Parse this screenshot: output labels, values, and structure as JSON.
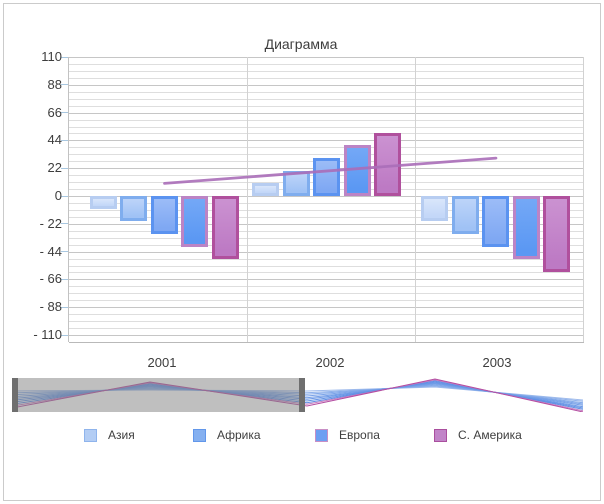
{
  "window": {
    "background": "#ffffff",
    "border_color": "#cbcbcb",
    "text_color": "#3d3d3d"
  },
  "chart_data": {
    "type": "bar",
    "title": "Диаграмма",
    "categories": [
      "2001",
      "2002",
      "2003"
    ],
    "series": [
      {
        "name": "",
        "values": [
          -10,
          10,
          -20
        ],
        "fill": "#c3d7f8",
        "inner": "#d9e6fb",
        "border": "#b7cdf1"
      },
      {
        "name": "Азия",
        "values": [
          -20,
          20,
          -30
        ],
        "fill": "#a0c2f5",
        "inner": "#bdd4f9",
        "border": "#7fadee"
      },
      {
        "name": "Африка",
        "values": [
          -30,
          30,
          -40
        ],
        "fill": "#7fa8f3",
        "inner": "#9cbcf7",
        "border": "#5b93f0"
      },
      {
        "name": "Европа",
        "values": [
          -40,
          40,
          -50
        ],
        "fill": "#5b98f3",
        "inner": "#74a8f6",
        "border": "#bc84c5"
      },
      {
        "name": "С. Америка",
        "values": [
          -50,
          50,
          -60
        ],
        "fill": "#bd7ac4",
        "inner": "#cb92d1",
        "border": "#b0509d"
      }
    ],
    "line_series": {
      "values": [
        10,
        20,
        30
      ],
      "color": "#aa6eb9"
    },
    "ylim": [
      -110,
      110
    ],
    "y_major_step": 22,
    "y_minor_step": 5.5,
    "y_ticks": [
      "110",
      "88",
      "66",
      "44",
      "22",
      "0",
      "- 22",
      "- 44",
      "- 66",
      "- 88",
      "- 110"
    ],
    "grid": {
      "major_color": "#c6c6c6",
      "minor_color": "#dedede",
      "axis_color": "#b9b9b9",
      "tick_color": "#a8c7e0"
    },
    "legend": {
      "position": "bottom",
      "entries": [
        {
          "label": "Азия",
          "fill": "#b3cdf4",
          "border": "#8fb4ec"
        },
        {
          "label": "Африка",
          "fill": "#85b0f0",
          "border": "#6297ea"
        },
        {
          "label": "Европа",
          "fill": "#6d9ff2",
          "border": "#c88fc5"
        },
        {
          "label": "С. Америка",
          "fill": "#c184c8",
          "border": "#aa4f9e"
        }
      ]
    }
  },
  "navigator": {
    "selected_range": {
      "start": "2001",
      "covers_fraction": 0.51
    },
    "overlay_color": "rgba(128,128,128,0.5)",
    "handle_color": "#6f6f6f",
    "line_colors": [
      "#9fbbec",
      "#8fb1ea",
      "#81a8e9",
      "#79a2e8",
      "#729de7",
      "#6b98e6",
      "#6493e5",
      "#5d8ee4",
      "#c77fc0",
      "#b44da1"
    ]
  }
}
